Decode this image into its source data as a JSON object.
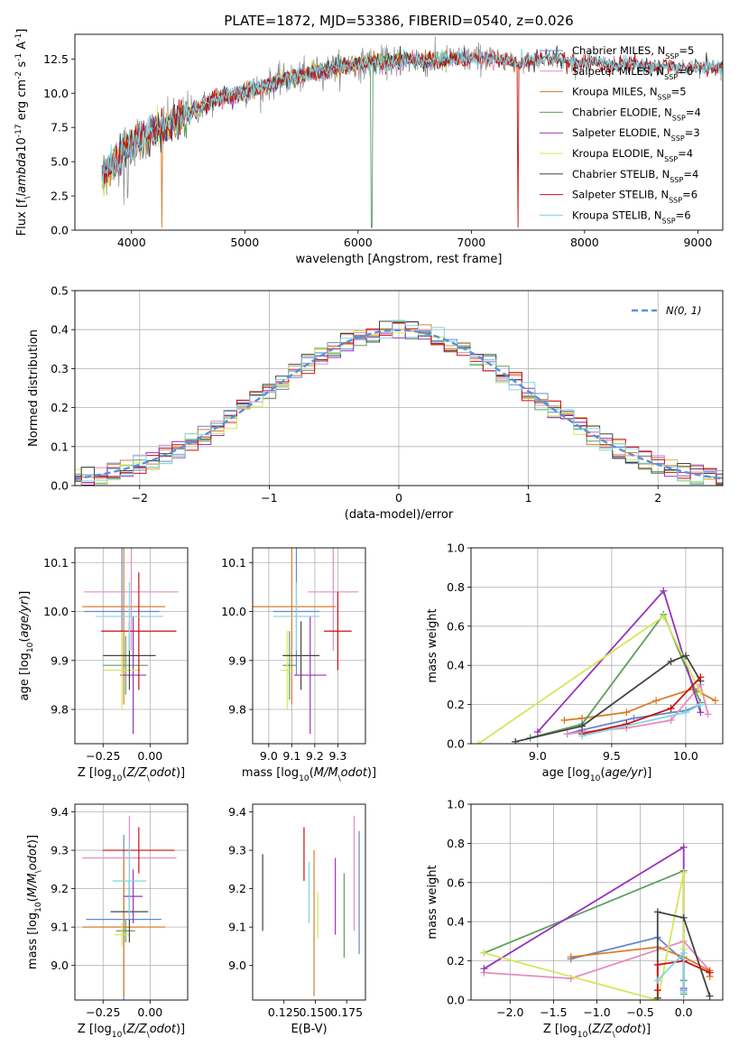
{
  "chart_data": [
    {
      "type": "line",
      "panel": "spectrum",
      "title": "PLATE=1872, MJD=53386, FIBERID=0540, z=0.026",
      "xlabel": "wavelength [Angstrom, rest frame]",
      "ylabel": "Flux [f$_\\lambda$10$^{-17}$ erg cm$^{-2}$ s$^{-1}$ A$^{-1}$]",
      "xlim": [
        3500,
        9220
      ],
      "ylim": [
        0,
        14.3
      ],
      "xticks": [
        "4000",
        "5000",
        "6000",
        "7000",
        "8000",
        "9000"
      ],
      "yticks": [
        "0.0",
        "2.5",
        "5.0",
        "7.5",
        "10.0",
        "12.5"
      ],
      "grid": false,
      "legend_position": "top-right",
      "data_wavelength": [
        3740,
        3800,
        3900,
        4000,
        4100,
        4200,
        4300,
        4400,
        4500,
        4600,
        4700,
        4800,
        4900,
        5000,
        5100,
        5200,
        5300,
        5400,
        5500,
        5600,
        5700,
        5800,
        5900,
        6000,
        6100,
        6200,
        6300,
        6400,
        6500,
        6600,
        6700,
        6800,
        6900,
        7000,
        7100,
        7200,
        7300,
        7400,
        7500,
        7600,
        7700,
        7800,
        7900,
        8000,
        8100,
        8200,
        8300,
        8400,
        8500,
        8600,
        8700,
        8800,
        8900,
        9000,
        9100,
        9200
      ],
      "data_flux": [
        3.8,
        4.5,
        5.5,
        6.2,
        6.7,
        7.3,
        7.6,
        8.0,
        8.6,
        8.9,
        9.4,
        9.7,
        9.8,
        10.1,
        10.3,
        10.6,
        10.9,
        11.1,
        11.2,
        11.5,
        11.7,
        11.9,
        12.0,
        12.1,
        12.2,
        12.3,
        12.3,
        12.4,
        12.4,
        12.3,
        12.4,
        12.4,
        12.5,
        12.5,
        12.6,
        12.5,
        12.4,
        12.2,
        12.3,
        12.5,
        12.6,
        12.4,
        12.2,
        12.1,
        12.3,
        12.1,
        12.0,
        12.2,
        12.0,
        11.9,
        12.0,
        11.9,
        11.8,
        11.9,
        11.9,
        11.8
      ],
      "models": [
        {
          "name": "Chabrier MILES, N$_{SSP}$=5",
          "color": "#6688cc",
          "lmax": 7400
        },
        {
          "name": "Salpeter MILES, N$_{SSP}$=6",
          "color": "#e58bc0",
          "lmax": 7400
        },
        {
          "name": "Kroupa MILES, N$_{SSP}$=5",
          "color": "#d97e2a",
          "lmax": 7400
        },
        {
          "name": "Chabrier ELODIE, N$_{SSP}$=4",
          "color": "#5f9e5f",
          "lmax": 6800
        },
        {
          "name": "Salpeter ELODIE, N$_{SSP}$=3",
          "color": "#9933bb",
          "lmax": 6800
        },
        {
          "name": "Kroupa ELODIE, N$_{SSP}$=4",
          "color": "#d6e65a",
          "lmax": 6800
        },
        {
          "name": "Chabrier STELIB, N$_{SSP}$=4",
          "color": "#444444",
          "lmax": 9220
        },
        {
          "name": "Salpeter STELIB, N$_{SSP}$=6",
          "color": "#cc1111",
          "lmax": 9220
        },
        {
          "name": "Kroupa STELIB, N$_{SSP}$=6",
          "color": "#7fd6e3",
          "lmax": 9220
        }
      ]
    },
    {
      "type": "line",
      "panel": "residuals",
      "xlabel": "(data-model)/error",
      "ylabel": "Normed distribution",
      "xlim": [
        -2.5,
        2.5
      ],
      "ylim": [
        0,
        0.5
      ],
      "xticks": [
        "−2",
        "−1",
        "0",
        "1",
        "2"
      ],
      "yticks": [
        "0.0",
        "0.1",
        "0.2",
        "0.3",
        "0.4",
        "0.5"
      ],
      "grid": true,
      "legend_position": "top-right",
      "reference_curve": "$\\mathcal{N}(0,1)$",
      "bin_width": 0.1
    },
    {
      "type": "scatter",
      "panel": "age-vs-Z",
      "xlabel": "Z [log$_{10}$($Z/Z_\\odot$)]",
      "ylabel": "age  [log$_{10}$($age/yr$)]",
      "xlim": [
        -0.4,
        0.2
      ],
      "ylim": [
        9.73,
        10.13
      ],
      "xticks": [
        "−0.25",
        "0.00"
      ],
      "yticks": [
        "9.8",
        "9.9",
        "10.0",
        "10.1"
      ],
      "grid": true,
      "points": [
        {
          "x": -0.15,
          "y": 10.0,
          "xerr": 0.2,
          "yerr": 0.13,
          "color": "#6688cc"
        },
        {
          "x": -0.1,
          "y": 10.04,
          "xerr": 0.25,
          "yerr": 0.12,
          "color": "#e58bc0"
        },
        {
          "x": -0.14,
          "y": 10.01,
          "xerr": 0.22,
          "yerr": 0.2,
          "color": "#d97e2a"
        },
        {
          "x": -0.13,
          "y": 9.89,
          "xerr": 0.12,
          "yerr": 0.06,
          "color": "#5f9e5f"
        },
        {
          "x": -0.09,
          "y": 9.87,
          "xerr": 0.07,
          "yerr": 0.12,
          "color": "#9933bb"
        },
        {
          "x": -0.15,
          "y": 9.88,
          "xerr": 0.1,
          "yerr": 0.08,
          "color": "#d6e65a"
        },
        {
          "x": -0.11,
          "y": 9.91,
          "xerr": 0.14,
          "yerr": 0.07,
          "color": "#444444"
        },
        {
          "x": -0.06,
          "y": 9.96,
          "xerr": 0.2,
          "yerr": 0.12,
          "color": "#cc1111"
        },
        {
          "x": -0.11,
          "y": 9.99,
          "xerr": 0.18,
          "yerr": 0.07,
          "color": "#7fd6e3"
        }
      ]
    },
    {
      "type": "scatter",
      "panel": "age-vs-mass",
      "xlabel": "mass [log$_{10}$($M/M_\\odot$)]",
      "ylabel": "",
      "xlim": [
        8.93,
        9.42
      ],
      "ylim": [
        9.73,
        10.13
      ],
      "xticks": [
        "9.0",
        "9.1",
        "9.2",
        "9.3"
      ],
      "yticks": [
        "9.8",
        "9.9",
        "10.0",
        "10.1"
      ],
      "grid": true,
      "points": [
        {
          "x": 9.12,
          "y": 10.0,
          "xerr": 0.1,
          "yerr": 0.13,
          "color": "#6688cc"
        },
        {
          "x": 9.28,
          "y": 10.04,
          "xerr": 0.11,
          "yerr": 0.12,
          "color": "#e58bc0"
        },
        {
          "x": 9.1,
          "y": 10.01,
          "xerr": 0.19,
          "yerr": 0.2,
          "color": "#d97e2a"
        },
        {
          "x": 9.09,
          "y": 9.89,
          "xerr": 0.03,
          "yerr": 0.07,
          "color": "#5f9e5f"
        },
        {
          "x": 9.18,
          "y": 9.87,
          "xerr": 0.07,
          "yerr": 0.12,
          "color": "#9933bb"
        },
        {
          "x": 9.08,
          "y": 9.88,
          "xerr": 0.03,
          "yerr": 0.08,
          "color": "#d6e65a"
        },
        {
          "x": 9.14,
          "y": 9.91,
          "xerr": 0.08,
          "yerr": 0.07,
          "color": "#444444"
        },
        {
          "x": 9.3,
          "y": 9.96,
          "xerr": 0.06,
          "yerr": 0.08,
          "color": "#cc1111"
        },
        {
          "x": 9.12,
          "y": 9.99,
          "xerr": 0.1,
          "yerr": 0.07,
          "color": "#7fd6e3"
        }
      ]
    },
    {
      "type": "line",
      "panel": "weight-vs-age",
      "xlabel": "age  [log$_{10}$($age/yr$)]",
      "ylabel": "mass weight",
      "xlim": [
        8.55,
        10.25
      ],
      "ylim": [
        0,
        1.0
      ],
      "xticks": [
        "9.0",
        "9.5",
        "10.0"
      ],
      "yticks": [
        "0.0",
        "0.2",
        "0.4",
        "0.6",
        "0.8",
        "1.0"
      ],
      "grid": true,
      "series": [
        {
          "color": "#6688cc",
          "x": [
            9.2,
            9.3,
            9.65,
            10.0,
            10.1
          ],
          "y": [
            0.05,
            0.07,
            0.13,
            0.17,
            0.2
          ]
        },
        {
          "color": "#e58bc0",
          "x": [
            9.2,
            9.3,
            9.6,
            9.9,
            10.1,
            10.15
          ],
          "y": [
            0.05,
            0.06,
            0.08,
            0.12,
            0.3,
            0.15
          ]
        },
        {
          "color": "#d97e2a",
          "x": [
            9.18,
            9.3,
            9.6,
            9.8,
            10.05,
            10.2
          ],
          "y": [
            0.12,
            0.13,
            0.16,
            0.22,
            0.28,
            0.22
          ]
        },
        {
          "color": "#5f9e5f",
          "x": [
            8.95,
            9.3,
            9.85,
            10.1
          ],
          "y": [
            0.03,
            0.1,
            0.66,
            0.21
          ]
        },
        {
          "color": "#9933bb",
          "x": [
            9.0,
            9.85,
            10.1
          ],
          "y": [
            0.06,
            0.78,
            0.16
          ]
        },
        {
          "color": "#d6e65a",
          "x": [
            8.6,
            9.85,
            10.1
          ],
          "y": [
            0.0,
            0.65,
            0.26
          ]
        },
        {
          "color": "#444444",
          "x": [
            8.85,
            9.3,
            9.9,
            10.0,
            10.1
          ],
          "y": [
            0.01,
            0.09,
            0.42,
            0.45,
            0.32
          ]
        },
        {
          "color": "#cc1111",
          "x": [
            9.3,
            9.6,
            9.9,
            10.1
          ],
          "y": [
            0.05,
            0.1,
            0.18,
            0.34
          ]
        },
        {
          "color": "#7fd6e3",
          "x": [
            9.3,
            10.0,
            10.1
          ],
          "y": [
            0.04,
            0.16,
            0.2
          ]
        }
      ]
    },
    {
      "type": "scatter",
      "panel": "mass-vs-Z",
      "xlabel": "Z [log$_{10}$($Z/Z_\\odot$)]",
      "ylabel": "mass [log$_{10}$($M/M_\\odot$)]",
      "xlim": [
        -0.4,
        0.2
      ],
      "ylim": [
        8.91,
        9.42
      ],
      "xticks": [
        "−0.25",
        "0.00"
      ],
      "yticks": [
        "9.0",
        "9.1",
        "9.2",
        "9.3",
        "9.4"
      ],
      "grid": true,
      "points": [
        {
          "x": -0.14,
          "y": 9.12,
          "xerr": 0.2,
          "yerr": 0.22,
          "color": "#6688cc"
        },
        {
          "x": -0.11,
          "y": 9.28,
          "xerr": 0.25,
          "yerr": 0.11,
          "color": "#e58bc0"
        },
        {
          "x": -0.14,
          "y": 9.1,
          "xerr": 0.22,
          "yerr": 0.18,
          "color": "#d97e2a"
        },
        {
          "x": -0.13,
          "y": 9.09,
          "xerr": 0.05,
          "yerr": 0.03,
          "color": "#5f9e5f"
        },
        {
          "x": -0.09,
          "y": 9.18,
          "xerr": 0.05,
          "yerr": 0.07,
          "color": "#9933bb"
        },
        {
          "x": -0.15,
          "y": 9.08,
          "xerr": 0.04,
          "yerr": 0.03,
          "color": "#d6e65a"
        },
        {
          "x": -0.11,
          "y": 9.14,
          "xerr": 0.1,
          "yerr": 0.08,
          "color": "#444444"
        },
        {
          "x": -0.06,
          "y": 9.3,
          "xerr": 0.19,
          "yerr": 0.06,
          "color": "#cc1111"
        },
        {
          "x": -0.11,
          "y": 9.22,
          "xerr": 0.09,
          "yerr": 0.1,
          "color": "#7fd6e3"
        }
      ]
    },
    {
      "type": "scatter",
      "panel": "mass-vs-EBV",
      "xlabel": "E(B-V)",
      "ylabel": "",
      "xlim": [
        0.1,
        0.19
      ],
      "ylim": [
        8.91,
        9.42
      ],
      "xticks": [
        "0.125",
        "0.150",
        "0.175"
      ],
      "yticks": [
        "9.0",
        "9.1",
        "9.2",
        "9.3",
        "9.4"
      ],
      "grid": false,
      "points": [
        {
          "x": 0.108,
          "y": 9.19,
          "yerr": 0.1,
          "color": "#444444"
        },
        {
          "x": 0.141,
          "y": 9.29,
          "yerr": 0.07,
          "color": "#cc1111"
        },
        {
          "x": 0.145,
          "y": 9.19,
          "yerr": 0.08,
          "color": "#7fd6e3"
        },
        {
          "x": 0.149,
          "y": 9.11,
          "yerr": 0.19,
          "color": "#d97e2a"
        },
        {
          "x": 0.152,
          "y": 9.13,
          "yerr": 0.06,
          "color": "#d6e65a"
        },
        {
          "x": 0.166,
          "y": 9.18,
          "yerr": 0.1,
          "color": "#9933bb"
        },
        {
          "x": 0.173,
          "y": 9.13,
          "yerr": 0.11,
          "color": "#5f9e5f"
        },
        {
          "x": 0.181,
          "y": 9.24,
          "yerr": 0.15,
          "color": "#e58bc0"
        },
        {
          "x": 0.185,
          "y": 9.19,
          "yerr": 0.16,
          "color": "#6688cc"
        }
      ]
    },
    {
      "type": "line",
      "panel": "weight-vs-Z",
      "xlabel": "Z [log$_{10}$($Z/Z_\\odot$)]",
      "ylabel": "mass weight",
      "xlim": [
        -2.45,
        0.45
      ],
      "ylim": [
        0,
        1.0
      ],
      "xticks": [
        "−2.0",
        "−1.5",
        "−1.0",
        "−0.5",
        "0.0"
      ],
      "yticks": [
        "0.0",
        "0.2",
        "0.4",
        "0.6",
        "0.8",
        "1.0"
      ],
      "grid": true,
      "series": [
        {
          "color": "#6688cc",
          "x": [
            -1.3,
            -0.3,
            0.0,
            0.0
          ],
          "y": [
            0.21,
            0.32,
            0.2,
            0.05
          ]
        },
        {
          "color": "#e58bc0",
          "x": [
            -2.3,
            -1.3,
            0.0,
            0.3
          ],
          "y": [
            0.14,
            0.11,
            0.3,
            0.15
          ]
        },
        {
          "color": "#d97e2a",
          "x": [
            -1.3,
            -0.3,
            0.0,
            0.3,
            0.3
          ],
          "y": [
            0.22,
            0.27,
            0.22,
            0.15,
            0.12
          ]
        },
        {
          "color": "#5f9e5f",
          "x": [
            -2.3,
            0.0,
            0.0,
            0.0
          ],
          "y": [
            0.24,
            0.66,
            0.03,
            0.1
          ]
        },
        {
          "color": "#9933bb",
          "x": [
            -2.3,
            0.0,
            0.0
          ],
          "y": [
            0.16,
            0.78,
            0.06
          ]
        },
        {
          "color": "#d6e65a",
          "x": [
            -2.3,
            -0.3,
            0.0,
            0.0
          ],
          "y": [
            0.24,
            0.0,
            0.65,
            0.26
          ]
        },
        {
          "color": "#444444",
          "x": [
            -0.3,
            -0.3,
            0.0,
            0.3
          ],
          "y": [
            0.01,
            0.45,
            0.42,
            0.02
          ]
        },
        {
          "color": "#cc1111",
          "x": [
            -0.3,
            -0.3,
            0.0,
            0.3
          ],
          "y": [
            0.05,
            0.18,
            0.2,
            0.14
          ]
        },
        {
          "color": "#7fd6e3",
          "x": [
            -0.3,
            0.0,
            0.0
          ],
          "y": [
            0.1,
            0.24,
            0.04
          ]
        }
      ]
    }
  ]
}
